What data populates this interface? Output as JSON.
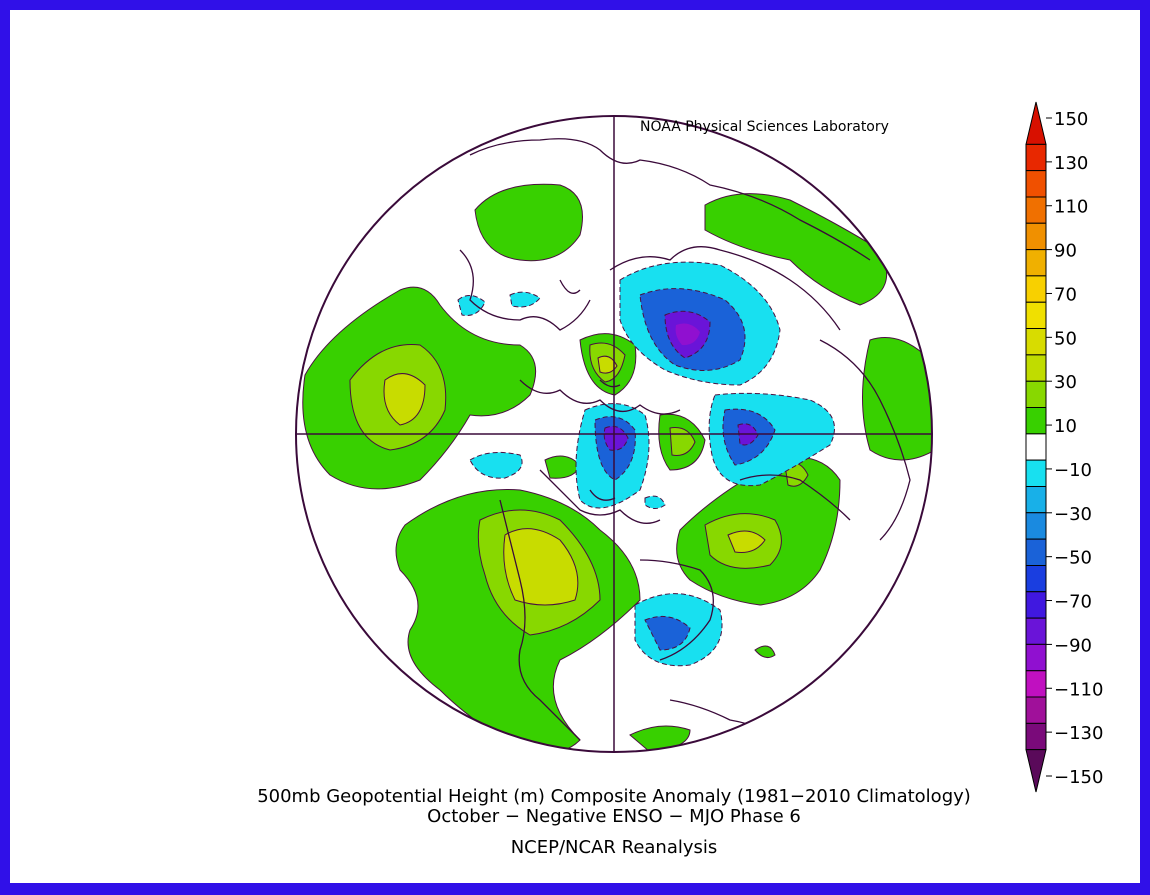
{
  "credit": "NOAA Physical Sciences Laboratory",
  "title_line1": "500mb Geopotential Height (m) Composite Anomaly (1981−2010 Climatology)",
  "title_line2": "October − Negative ENSO − MJO Phase 6",
  "source": "NCEP/NCAR Reanalysis",
  "colorbar": {
    "labels": [
      "150",
      "130",
      "110",
      "90",
      "70",
      "50",
      "30",
      "10",
      "−10",
      "−30",
      "−50",
      "−70",
      "−90",
      "−110",
      "−130",
      "−150"
    ],
    "colors": [
      "#5a0a5a",
      "#7a0a7a",
      "#a0109a",
      "#c010c0",
      "#9010d0",
      "#6a14d8",
      "#4018e0",
      "#1a3ee0",
      "#1a62d8",
      "#1a8ae0",
      "#18b0e8",
      "#18e0f0",
      "#ffffff",
      "#38d000",
      "#88d800",
      "#c0dc00",
      "#d8dc00",
      "#f0e000",
      "#f8d000",
      "#f0b000",
      "#f09000",
      "#f07000",
      "#f05000",
      "#e82800",
      "#d81000"
    ],
    "color_names": {
      "positive_green": "#38d000",
      "positive_light": "#88d800",
      "positive_yellow": "#c8dc00",
      "negative_cyan": "#18e0f0",
      "negative_blue": "#1a62d8",
      "negative_purple": "#6a14d8",
      "frame_blue": "#3010e8"
    }
  }
}
